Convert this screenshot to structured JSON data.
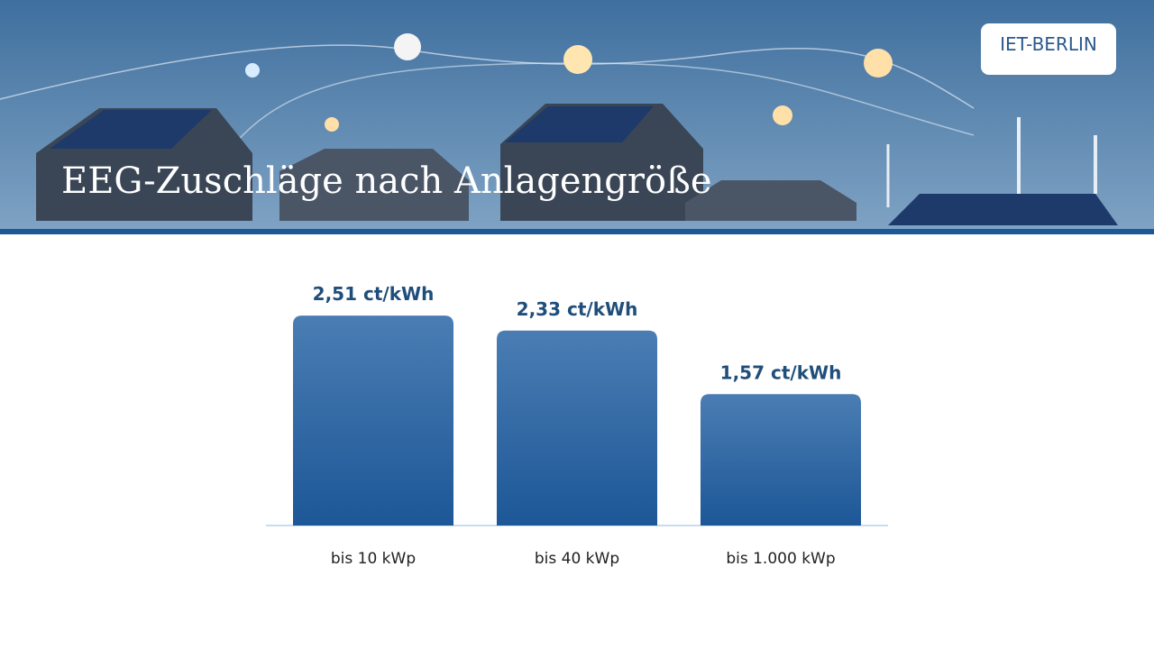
{
  "header": {
    "title": "EEG-Zuschläge nach Anlagengröße",
    "logo": "IET-BERLIN"
  },
  "chart_data": {
    "type": "bar",
    "categories": [
      "bis 10 kWp",
      "bis 40 kWp",
      "bis 1.000 kWp"
    ],
    "values": [
      2.51,
      2.33,
      1.57
    ],
    "value_labels": [
      "2,51 ct/kWh",
      "2,33 ct/kWh",
      "1,57 ct/kWh"
    ],
    "color": "#2a62a0"
  }
}
